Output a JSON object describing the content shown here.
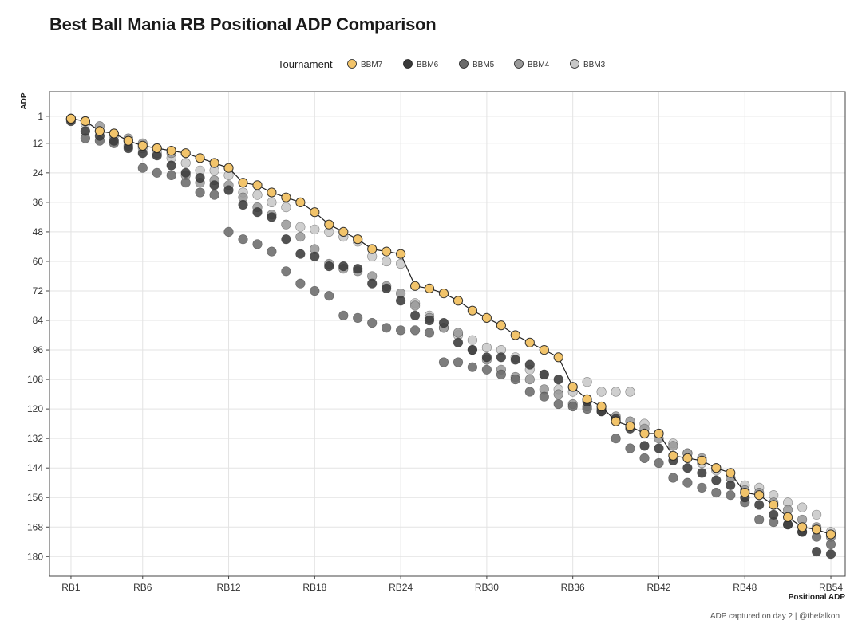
{
  "chart_data": {
    "type": "scatter",
    "title": "Best Ball Mania RB Positional ADP Comparison",
    "xlabel": "Positional ADP",
    "ylabel": "ADP",
    "caption": "ADP captured on day 2 | @thefalkon",
    "legend_title": "Tournament",
    "legend_position": "top",
    "grid": true,
    "x_ticks": [
      "RB1",
      "RB6",
      "RB12",
      "RB18",
      "RB24",
      "RB30",
      "RB36",
      "RB42",
      "RB48",
      "RB54"
    ],
    "x_tick_values": [
      1,
      6,
      12,
      18,
      24,
      30,
      36,
      42,
      48,
      54
    ],
    "y_ticks": [
      1,
      12,
      24,
      36,
      48,
      60,
      72,
      84,
      96,
      108,
      120,
      132,
      144,
      156,
      168,
      180
    ],
    "xlim": [
      -0.5,
      55
    ],
    "ylim": [
      -9,
      188
    ],
    "y_reversed": true,
    "series": [
      {
        "name": "BBM3",
        "color": "#c8c8c8",
        "line": false,
        "values": [
          [
            1,
            2
          ],
          [
            2,
            4
          ],
          [
            3,
            7
          ],
          [
            4,
            9
          ],
          [
            5,
            11
          ],
          [
            6,
            14
          ],
          [
            7,
            16
          ],
          [
            8,
            18
          ],
          [
            9,
            20
          ],
          [
            10,
            23
          ],
          [
            11,
            23
          ],
          [
            12,
            25
          ],
          [
            13,
            32
          ],
          [
            14,
            33
          ],
          [
            15,
            36
          ],
          [
            16,
            38
          ],
          [
            17,
            46
          ],
          [
            18,
            47
          ],
          [
            19,
            48
          ],
          [
            20,
            50
          ],
          [
            21,
            52
          ],
          [
            22,
            58
          ],
          [
            23,
            60
          ],
          [
            24,
            61
          ],
          [
            25,
            77
          ],
          [
            26,
            82
          ],
          [
            27,
            87
          ],
          [
            28,
            90
          ],
          [
            29,
            92
          ],
          [
            30,
            95
          ],
          [
            31,
            96
          ],
          [
            32,
            99
          ],
          [
            33,
            104
          ],
          [
            34,
            106
          ],
          [
            35,
            112
          ],
          [
            36,
            113
          ],
          [
            37,
            109
          ],
          [
            38,
            113
          ],
          [
            39,
            113
          ],
          [
            40,
            113
          ],
          [
            41,
            126
          ],
          [
            42,
            130
          ],
          [
            43,
            134
          ],
          [
            44,
            138
          ],
          [
            45,
            142
          ],
          [
            46,
            145
          ],
          [
            47,
            148
          ],
          [
            48,
            151
          ],
          [
            49,
            152
          ],
          [
            50,
            155
          ],
          [
            51,
            158
          ],
          [
            52,
            160
          ],
          [
            53,
            163
          ],
          [
            54,
            170
          ]
        ]
      },
      {
        "name": "BBM4",
        "color": "#9a9a9a",
        "line": false,
        "values": [
          [
            1,
            2
          ],
          [
            2,
            3
          ],
          [
            3,
            5
          ],
          [
            4,
            8
          ],
          [
            5,
            10
          ],
          [
            6,
            12
          ],
          [
            7,
            14
          ],
          [
            8,
            16
          ],
          [
            9,
            25
          ],
          [
            10,
            28
          ],
          [
            11,
            27
          ],
          [
            12,
            29
          ],
          [
            13,
            34
          ],
          [
            14,
            38
          ],
          [
            15,
            41
          ],
          [
            16,
            45
          ],
          [
            17,
            50
          ],
          [
            18,
            55
          ],
          [
            19,
            61
          ],
          [
            20,
            63
          ],
          [
            21,
            64
          ],
          [
            22,
            66
          ],
          [
            23,
            70
          ],
          [
            24,
            73
          ],
          [
            25,
            78
          ],
          [
            26,
            83
          ],
          [
            27,
            87
          ],
          [
            28,
            89
          ],
          [
            29,
            96
          ],
          [
            30,
            100
          ],
          [
            31,
            104
          ],
          [
            32,
            107
          ],
          [
            33,
            108
          ],
          [
            34,
            112
          ],
          [
            35,
            114
          ],
          [
            36,
            118
          ],
          [
            37,
            119
          ],
          [
            38,
            120
          ],
          [
            39,
            123
          ],
          [
            40,
            125
          ],
          [
            41,
            128
          ],
          [
            42,
            132
          ],
          [
            43,
            135
          ],
          [
            44,
            138
          ],
          [
            45,
            140
          ],
          [
            46,
            144
          ],
          [
            47,
            148
          ],
          [
            48,
            153
          ],
          [
            49,
            154
          ],
          [
            50,
            158
          ],
          [
            51,
            161
          ],
          [
            52,
            165
          ],
          [
            53,
            168
          ],
          [
            54,
            172
          ]
        ]
      },
      {
        "name": "BBM5",
        "color": "#6b6b6b",
        "line": false,
        "values": [
          [
            1,
            2
          ],
          [
            2,
            10
          ],
          [
            3,
            11
          ],
          [
            4,
            12
          ],
          [
            5,
            13
          ],
          [
            6,
            22
          ],
          [
            7,
            24
          ],
          [
            8,
            25
          ],
          [
            9,
            28
          ],
          [
            10,
            32
          ],
          [
            11,
            33
          ],
          [
            12,
            48
          ],
          [
            13,
            51
          ],
          [
            14,
            53
          ],
          [
            15,
            56
          ],
          [
            16,
            64
          ],
          [
            17,
            69
          ],
          [
            18,
            72
          ],
          [
            19,
            74
          ],
          [
            20,
            82
          ],
          [
            21,
            83
          ],
          [
            22,
            85
          ],
          [
            23,
            87
          ],
          [
            24,
            88
          ],
          [
            25,
            88
          ],
          [
            26,
            89
          ],
          [
            27,
            101
          ],
          [
            28,
            101
          ],
          [
            29,
            103
          ],
          [
            30,
            104
          ],
          [
            31,
            106
          ],
          [
            32,
            108
          ],
          [
            33,
            113
          ],
          [
            34,
            115
          ],
          [
            35,
            118
          ],
          [
            36,
            119
          ],
          [
            37,
            120
          ],
          [
            38,
            121
          ],
          [
            39,
            132
          ],
          [
            40,
            136
          ],
          [
            41,
            140
          ],
          [
            42,
            142
          ],
          [
            43,
            148
          ],
          [
            44,
            150
          ],
          [
            45,
            152
          ],
          [
            46,
            154
          ],
          [
            47,
            155
          ],
          [
            48,
            158
          ],
          [
            49,
            165
          ],
          [
            50,
            166
          ],
          [
            51,
            167
          ],
          [
            52,
            170
          ],
          [
            53,
            172
          ],
          [
            54,
            175
          ]
        ]
      },
      {
        "name": "BBM6",
        "color": "#3a3a3a",
        "line": false,
        "values": [
          [
            1,
            3
          ],
          [
            2,
            7
          ],
          [
            3,
            9
          ],
          [
            4,
            11
          ],
          [
            5,
            14
          ],
          [
            6,
            16
          ],
          [
            7,
            17
          ],
          [
            8,
            21
          ],
          [
            9,
            24
          ],
          [
            10,
            26
          ],
          [
            11,
            29
          ],
          [
            12,
            31
          ],
          [
            13,
            37
          ],
          [
            14,
            40
          ],
          [
            15,
            42
          ],
          [
            16,
            51
          ],
          [
            17,
            57
          ],
          [
            18,
            58
          ],
          [
            19,
            62
          ],
          [
            20,
            62
          ],
          [
            21,
            63
          ],
          [
            22,
            69
          ],
          [
            23,
            71
          ],
          [
            24,
            76
          ],
          [
            25,
            82
          ],
          [
            26,
            84
          ],
          [
            27,
            85
          ],
          [
            28,
            93
          ],
          [
            29,
            96
          ],
          [
            30,
            99
          ],
          [
            31,
            99
          ],
          [
            32,
            100
          ],
          [
            33,
            102
          ],
          [
            34,
            106
          ],
          [
            35,
            108
          ],
          [
            36,
            111
          ],
          [
            37,
            117
          ],
          [
            38,
            121
          ],
          [
            39,
            124
          ],
          [
            40,
            128
          ],
          [
            41,
            135
          ],
          [
            42,
            136
          ],
          [
            43,
            141
          ],
          [
            44,
            144
          ],
          [
            45,
            146
          ],
          [
            46,
            149
          ],
          [
            47,
            151
          ],
          [
            48,
            156
          ],
          [
            49,
            159
          ],
          [
            50,
            163
          ],
          [
            51,
            167
          ],
          [
            52,
            170
          ],
          [
            53,
            178
          ],
          [
            54,
            179
          ]
        ]
      },
      {
        "name": "BBM7",
        "color": "#f2c46b",
        "line": true,
        "values": [
          [
            1,
            2
          ],
          [
            2,
            3
          ],
          [
            3,
            7
          ],
          [
            4,
            8
          ],
          [
            5,
            11
          ],
          [
            6,
            13
          ],
          [
            7,
            14
          ],
          [
            8,
            15
          ],
          [
            9,
            16
          ],
          [
            10,
            18
          ],
          [
            11,
            20
          ],
          [
            12,
            22
          ],
          [
            13,
            28
          ],
          [
            14,
            29
          ],
          [
            15,
            32
          ],
          [
            16,
            34
          ],
          [
            17,
            36
          ],
          [
            18,
            40
          ],
          [
            19,
            45
          ],
          [
            20,
            48
          ],
          [
            21,
            51
          ],
          [
            22,
            55
          ],
          [
            23,
            56
          ],
          [
            24,
            57
          ],
          [
            25,
            70
          ],
          [
            26,
            71
          ],
          [
            27,
            73
          ],
          [
            28,
            76
          ],
          [
            29,
            80
          ],
          [
            30,
            83
          ],
          [
            31,
            86
          ],
          [
            32,
            90
          ],
          [
            33,
            93
          ],
          [
            34,
            96
          ],
          [
            35,
            99
          ],
          [
            36,
            111
          ],
          [
            37,
            116
          ],
          [
            38,
            119
          ],
          [
            39,
            125
          ],
          [
            40,
            127
          ],
          [
            41,
            130
          ],
          [
            42,
            130
          ],
          [
            43,
            139
          ],
          [
            44,
            140
          ],
          [
            45,
            141
          ],
          [
            46,
            144
          ],
          [
            47,
            146
          ],
          [
            48,
            154
          ],
          [
            49,
            155
          ],
          [
            50,
            159
          ],
          [
            51,
            164
          ],
          [
            52,
            168
          ],
          [
            53,
            169
          ],
          [
            54,
            171
          ]
        ]
      }
    ]
  }
}
